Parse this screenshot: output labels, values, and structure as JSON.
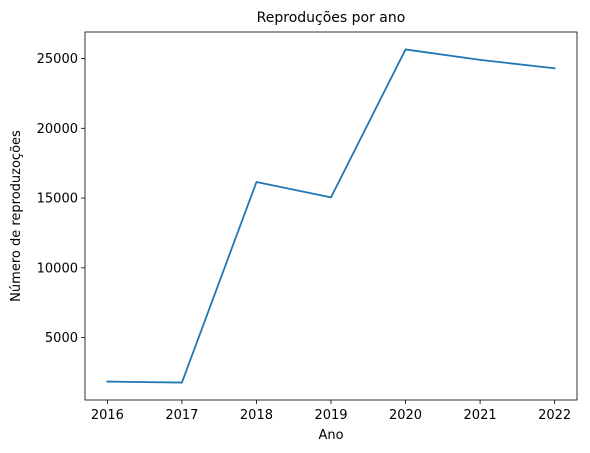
{
  "chart_data": {
    "type": "line",
    "title": "Reproduções por ano",
    "xlabel": "Ano",
    "ylabel": "Número de reproduzoções",
    "x": [
      2016,
      2017,
      2018,
      2019,
      2020,
      2021,
      2022
    ],
    "series": [
      {
        "values": [
          1850,
          1780,
          16150,
          15050,
          25650,
          24900,
          24300
        ],
        "color": "#1f77b4"
      }
    ],
    "xlim": [
      2015.7,
      2022.3
    ],
    "ylim": [
      530,
      26900
    ],
    "xticks": [
      "2016",
      "2017",
      "2018",
      "2019",
      "2020",
      "2021",
      "2022"
    ],
    "yticks": [
      "5000",
      "10000",
      "15000",
      "20000",
      "25000"
    ],
    "grid": false,
    "legend": "none"
  }
}
